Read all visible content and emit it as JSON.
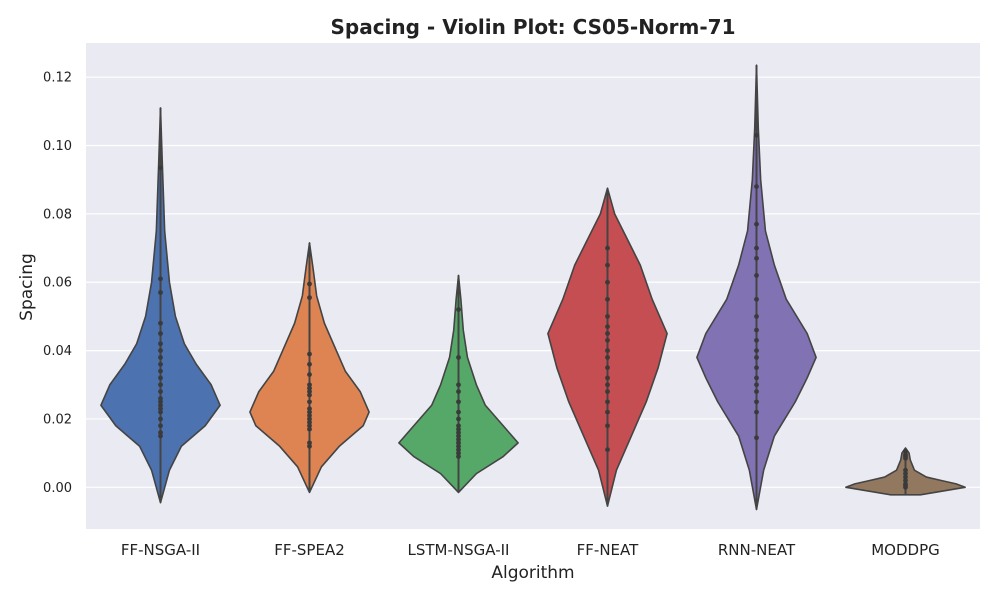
{
  "chart_data": {
    "type": "violin",
    "title": "Spacing - Violin Plot: CS05-Norm-71",
    "xlabel": "Algorithm",
    "ylabel": "Spacing",
    "ylim": [
      -0.0122,
      0.13
    ],
    "yticks": [
      0.0,
      0.02,
      0.04,
      0.06,
      0.08,
      0.1,
      0.12
    ],
    "ytick_labels": [
      "0.00",
      "0.02",
      "0.04",
      "0.06",
      "0.08",
      "0.10",
      "0.12"
    ],
    "grid": true,
    "background": "#eaeaf2",
    "categories": [
      "FF-NSGA-II",
      "FF-SPEA2",
      "LSTM-NSGA-II",
      "FF-NEAT",
      "RNN-NEAT",
      "MODDPG"
    ],
    "series": [
      {
        "color": "#4c72b0",
        "points": [
          0.0935,
          0.061,
          0.057,
          0.048,
          0.045,
          0.042,
          0.04,
          0.038,
          0.036,
          0.034,
          0.032,
          0.03,
          0.028,
          0.026,
          0.025,
          0.024,
          0.023,
          0.022,
          0.02,
          0.018,
          0.016,
          0.015
        ],
        "density": [
          [
            -0.0045,
            0.0
          ],
          [
            0.005,
            0.15
          ],
          [
            0.012,
            0.35
          ],
          [
            0.018,
            0.75
          ],
          [
            0.024,
            1.0
          ],
          [
            0.03,
            0.85
          ],
          [
            0.036,
            0.6
          ],
          [
            0.042,
            0.4
          ],
          [
            0.05,
            0.25
          ],
          [
            0.06,
            0.15
          ],
          [
            0.075,
            0.07
          ],
          [
            0.095,
            0.03
          ],
          [
            0.111,
            0.0
          ]
        ]
      },
      {
        "color": "#dd8452",
        "points": [
          0.0595,
          0.0555,
          0.039,
          0.036,
          0.033,
          0.03,
          0.029,
          0.028,
          0.027,
          0.025,
          0.023,
          0.022,
          0.021,
          0.02,
          0.019,
          0.018,
          0.017,
          0.013,
          0.012
        ],
        "density": [
          [
            -0.0015,
            0.0
          ],
          [
            0.006,
            0.2
          ],
          [
            0.012,
            0.5
          ],
          [
            0.018,
            0.9
          ],
          [
            0.022,
            1.0
          ],
          [
            0.028,
            0.85
          ],
          [
            0.034,
            0.6
          ],
          [
            0.04,
            0.45
          ],
          [
            0.048,
            0.25
          ],
          [
            0.056,
            0.12
          ],
          [
            0.064,
            0.06
          ],
          [
            0.0715,
            0.0
          ]
        ]
      },
      {
        "color": "#55a868",
        "points": [
          0.052,
          0.038,
          0.03,
          0.028,
          0.025,
          0.022,
          0.02,
          0.018,
          0.017,
          0.016,
          0.015,
          0.014,
          0.013,
          0.012,
          0.011,
          0.01,
          0.009
        ],
        "density": [
          [
            -0.0015,
            0.0
          ],
          [
            0.004,
            0.3
          ],
          [
            0.009,
            0.75
          ],
          [
            0.013,
            1.0
          ],
          [
            0.018,
            0.75
          ],
          [
            0.024,
            0.45
          ],
          [
            0.03,
            0.3
          ],
          [
            0.038,
            0.15
          ],
          [
            0.046,
            0.08
          ],
          [
            0.055,
            0.04
          ],
          [
            0.062,
            0.0
          ]
        ]
      },
      {
        "color": "#c44e52",
        "points": [
          0.07,
          0.065,
          0.06,
          0.055,
          0.05,
          0.047,
          0.045,
          0.043,
          0.04,
          0.038,
          0.035,
          0.032,
          0.03,
          0.028,
          0.025,
          0.022,
          0.018,
          0.011
        ],
        "density": [
          [
            -0.0055,
            0.0
          ],
          [
            0.005,
            0.15
          ],
          [
            0.015,
            0.4
          ],
          [
            0.025,
            0.65
          ],
          [
            0.035,
            0.85
          ],
          [
            0.045,
            1.0
          ],
          [
            0.055,
            0.75
          ],
          [
            0.065,
            0.55
          ],
          [
            0.072,
            0.35
          ],
          [
            0.08,
            0.12
          ],
          [
            0.0875,
            0.0
          ]
        ]
      },
      {
        "color": "#8172b3",
        "points": [
          0.103,
          0.088,
          0.077,
          0.07,
          0.067,
          0.062,
          0.055,
          0.05,
          0.046,
          0.043,
          0.04,
          0.038,
          0.035,
          0.032,
          0.03,
          0.028,
          0.025,
          0.022,
          0.0145
        ],
        "density": [
          [
            -0.0065,
            0.0
          ],
          [
            0.005,
            0.12
          ],
          [
            0.015,
            0.3
          ],
          [
            0.025,
            0.65
          ],
          [
            0.032,
            0.85
          ],
          [
            0.038,
            1.0
          ],
          [
            0.045,
            0.85
          ],
          [
            0.055,
            0.5
          ],
          [
            0.065,
            0.3
          ],
          [
            0.075,
            0.15
          ],
          [
            0.09,
            0.07
          ],
          [
            0.105,
            0.03
          ],
          [
            0.1235,
            0.0
          ]
        ]
      },
      {
        "color": "#937860",
        "points": [
          0.0105,
          0.0095,
          0.009,
          0.0085,
          0.005,
          0.004,
          0.003,
          0.002,
          0.001,
          0.0005,
          0.0
        ],
        "density": [
          [
            -0.0022,
            0.25
          ],
          [
            0.0,
            1.0
          ],
          [
            0.001,
            0.85
          ],
          [
            0.002,
            0.6
          ],
          [
            0.003,
            0.35
          ],
          [
            0.005,
            0.15
          ],
          [
            0.008,
            0.08
          ],
          [
            0.01,
            0.06
          ],
          [
            0.0115,
            0.0
          ]
        ]
      }
    ]
  }
}
